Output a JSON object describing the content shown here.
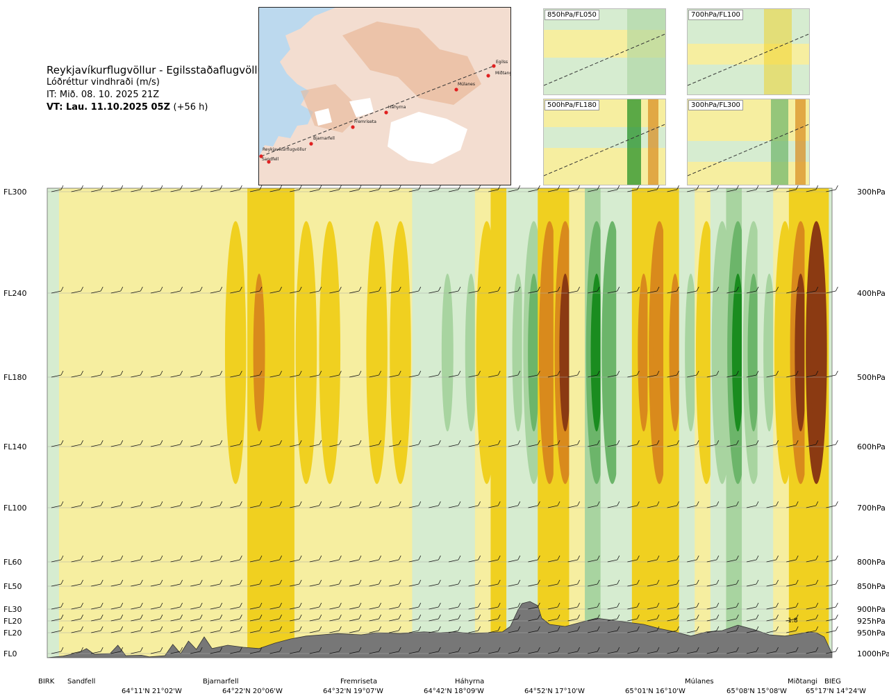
{
  "header": {
    "route_title": "Reykjavíkurflugvöllur - Egilsstaðaflugvöllur",
    "variable": "Lóðréttur vindhraði (m/s)",
    "issue_time": "IT: Mið. 08. 10. 2025 21Z",
    "valid_time": "VT: Lau. 11.10.2025 05Z",
    "lead_time": "(+56 h)"
  },
  "map": {
    "points": [
      {
        "name": "Reykjavíkurflugvöllur"
      },
      {
        "name": "Sandfell"
      },
      {
        "name": "Bjarnarfell"
      },
      {
        "name": "Fremriseta"
      },
      {
        "name": "Háhyrna"
      },
      {
        "name": "Múlanes"
      },
      {
        "name": "Miðtangi"
      },
      {
        "name": "Egilss"
      }
    ]
  },
  "panels": [
    {
      "label": "850hPa/FL050"
    },
    {
      "label": "700hPa/FL100"
    },
    {
      "label": "500hPa/FL180"
    },
    {
      "label": "300hPa/FL300"
    }
  ],
  "chart_data": {
    "type": "heatmap",
    "title": "",
    "levels": [
      {
        "fl": "FL300",
        "hpa": "300hPa"
      },
      {
        "fl": "FL240",
        "hpa": "400hPa"
      },
      {
        "fl": "FL180",
        "hpa": "500hPa"
      },
      {
        "fl": "FL140",
        "hpa": "600hPa"
      },
      {
        "fl": "FL100",
        "hpa": "700hPa"
      },
      {
        "fl": "FL60",
        "hpa": "800hPa"
      },
      {
        "fl": "FL50",
        "hpa": "850hPa"
      },
      {
        "fl": "FL30",
        "hpa": "900hPa"
      },
      {
        "fl": "FL20",
        "hpa": "925hPa"
      },
      {
        "fl": "FL20",
        "hpa": "950hPa"
      },
      {
        "fl": "FL0",
        "hpa": "1000hPa"
      }
    ],
    "waypoints": [
      "BIRK",
      "Sandfell",
      "Bjarnarfell",
      "Fremriseta",
      "Háhyrna",
      "Múlanes",
      "Miðtangi",
      "BIEG"
    ],
    "coordinates": [
      "64°11'N 21°02'W",
      "64°22'N 20°06'W",
      "64°32'N 19°07'W",
      "64°42'N 18°09'W",
      "64°52'N 17°10'W",
      "65°01'N 16°10'W",
      "65°08'N 15°08'W",
      "65°17'N 14°24'W"
    ],
    "annotation": "-1.8",
    "legend": "none",
    "colors": {
      "down_strong": "#8b3a12",
      "down_mid": "#d98a1c",
      "down_weak": "#f0d020",
      "down_faint": "#f6eea0",
      "up_faint": "#d6ecd0",
      "up_weak": "#a8d4a0",
      "up_mid": "#6cb56a",
      "up_strong": "#1a8c1f",
      "terrain": "#777777"
    },
    "terrain_profile": [
      [
        0,
        0.0
      ],
      [
        0.02,
        0.04
      ],
      [
        0.04,
        0.12
      ],
      [
        0.05,
        0.22
      ],
      [
        0.06,
        0.08
      ],
      [
        0.08,
        0.1
      ],
      [
        0.09,
        0.3
      ],
      [
        0.1,
        0.05
      ],
      [
        0.12,
        0.06
      ],
      [
        0.13,
        0.02
      ],
      [
        0.15,
        0.05
      ],
      [
        0.16,
        0.32
      ],
      [
        0.17,
        0.1
      ],
      [
        0.18,
        0.4
      ],
      [
        0.19,
        0.2
      ],
      [
        0.2,
        0.5
      ],
      [
        0.21,
        0.22
      ],
      [
        0.23,
        0.3
      ],
      [
        0.25,
        0.25
      ],
      [
        0.27,
        0.22
      ],
      [
        0.29,
        0.35
      ],
      [
        0.31,
        0.45
      ],
      [
        0.33,
        0.52
      ],
      [
        0.35,
        0.55
      ],
      [
        0.37,
        0.58
      ],
      [
        0.4,
        0.55
      ],
      [
        0.42,
        0.6
      ],
      [
        0.45,
        0.58
      ],
      [
        0.48,
        0.62
      ],
      [
        0.5,
        0.6
      ],
      [
        0.52,
        0.62
      ],
      [
        0.54,
        0.58
      ],
      [
        0.56,
        0.6
      ],
      [
        0.58,
        0.62
      ],
      [
        0.59,
        0.75
      ],
      [
        0.6,
        1.15
      ],
      [
        0.605,
        1.3
      ],
      [
        0.615,
        1.35
      ],
      [
        0.625,
        1.25
      ],
      [
        0.63,
        0.95
      ],
      [
        0.64,
        0.8
      ],
      [
        0.66,
        0.75
      ],
      [
        0.68,
        0.85
      ],
      [
        0.7,
        0.95
      ],
      [
        0.72,
        0.9
      ],
      [
        0.74,
        0.85
      ],
      [
        0.76,
        0.8
      ],
      [
        0.78,
        0.7
      ],
      [
        0.8,
        0.62
      ],
      [
        0.82,
        0.52
      ],
      [
        0.84,
        0.62
      ],
      [
        0.86,
        0.65
      ],
      [
        0.88,
        0.78
      ],
      [
        0.9,
        0.68
      ],
      [
        0.92,
        0.55
      ],
      [
        0.94,
        0.52
      ],
      [
        0.96,
        0.58
      ],
      [
        0.97,
        0.62
      ],
      [
        0.98,
        0.6
      ],
      [
        0.99,
        0.5
      ],
      [
        1.0,
        0.1
      ]
    ],
    "vertical_velocity_columns": [
      [
        0.03,
        0.22
      ],
      [
        0.06,
        0.1
      ],
      [
        0.09,
        0.12
      ],
      [
        0.12,
        0.28
      ],
      [
        0.15,
        0.35
      ],
      [
        0.18,
        0.25
      ],
      [
        0.21,
        0.28
      ],
      [
        0.24,
        0.85
      ],
      [
        0.27,
        1.15
      ],
      [
        0.3,
        0.95
      ],
      [
        0.33,
        0.6
      ],
      [
        0.36,
        0.45
      ],
      [
        0.39,
        0.3
      ],
      [
        0.42,
        0.85
      ],
      [
        0.45,
        0.75
      ],
      [
        0.48,
        -0.45
      ],
      [
        0.51,
        -0.7
      ],
      [
        0.54,
        -0.6
      ],
      [
        0.56,
        0.5
      ],
      [
        0.58,
        1.0
      ],
      [
        0.6,
        -0.55
      ],
      [
        0.62,
        -1.2
      ],
      [
        0.64,
        1.6
      ],
      [
        0.66,
        1.9
      ],
      [
        0.68,
        0.4
      ],
      [
        0.7,
        -1.5
      ],
      [
        0.72,
        -1.3
      ],
      [
        0.74,
        -0.4
      ],
      [
        0.76,
        1.5
      ],
      [
        0.78,
        1.8
      ],
      [
        0.8,
        1.2
      ],
      [
        0.82,
        -0.7
      ],
      [
        0.84,
        0.5
      ],
      [
        0.86,
        -0.8
      ],
      [
        0.88,
        -1.6
      ],
      [
        0.9,
        -0.9
      ],
      [
        0.92,
        -0.55
      ],
      [
        0.94,
        0.7
      ],
      [
        0.96,
        2.4
      ],
      [
        0.98,
        2.8
      ]
    ]
  }
}
